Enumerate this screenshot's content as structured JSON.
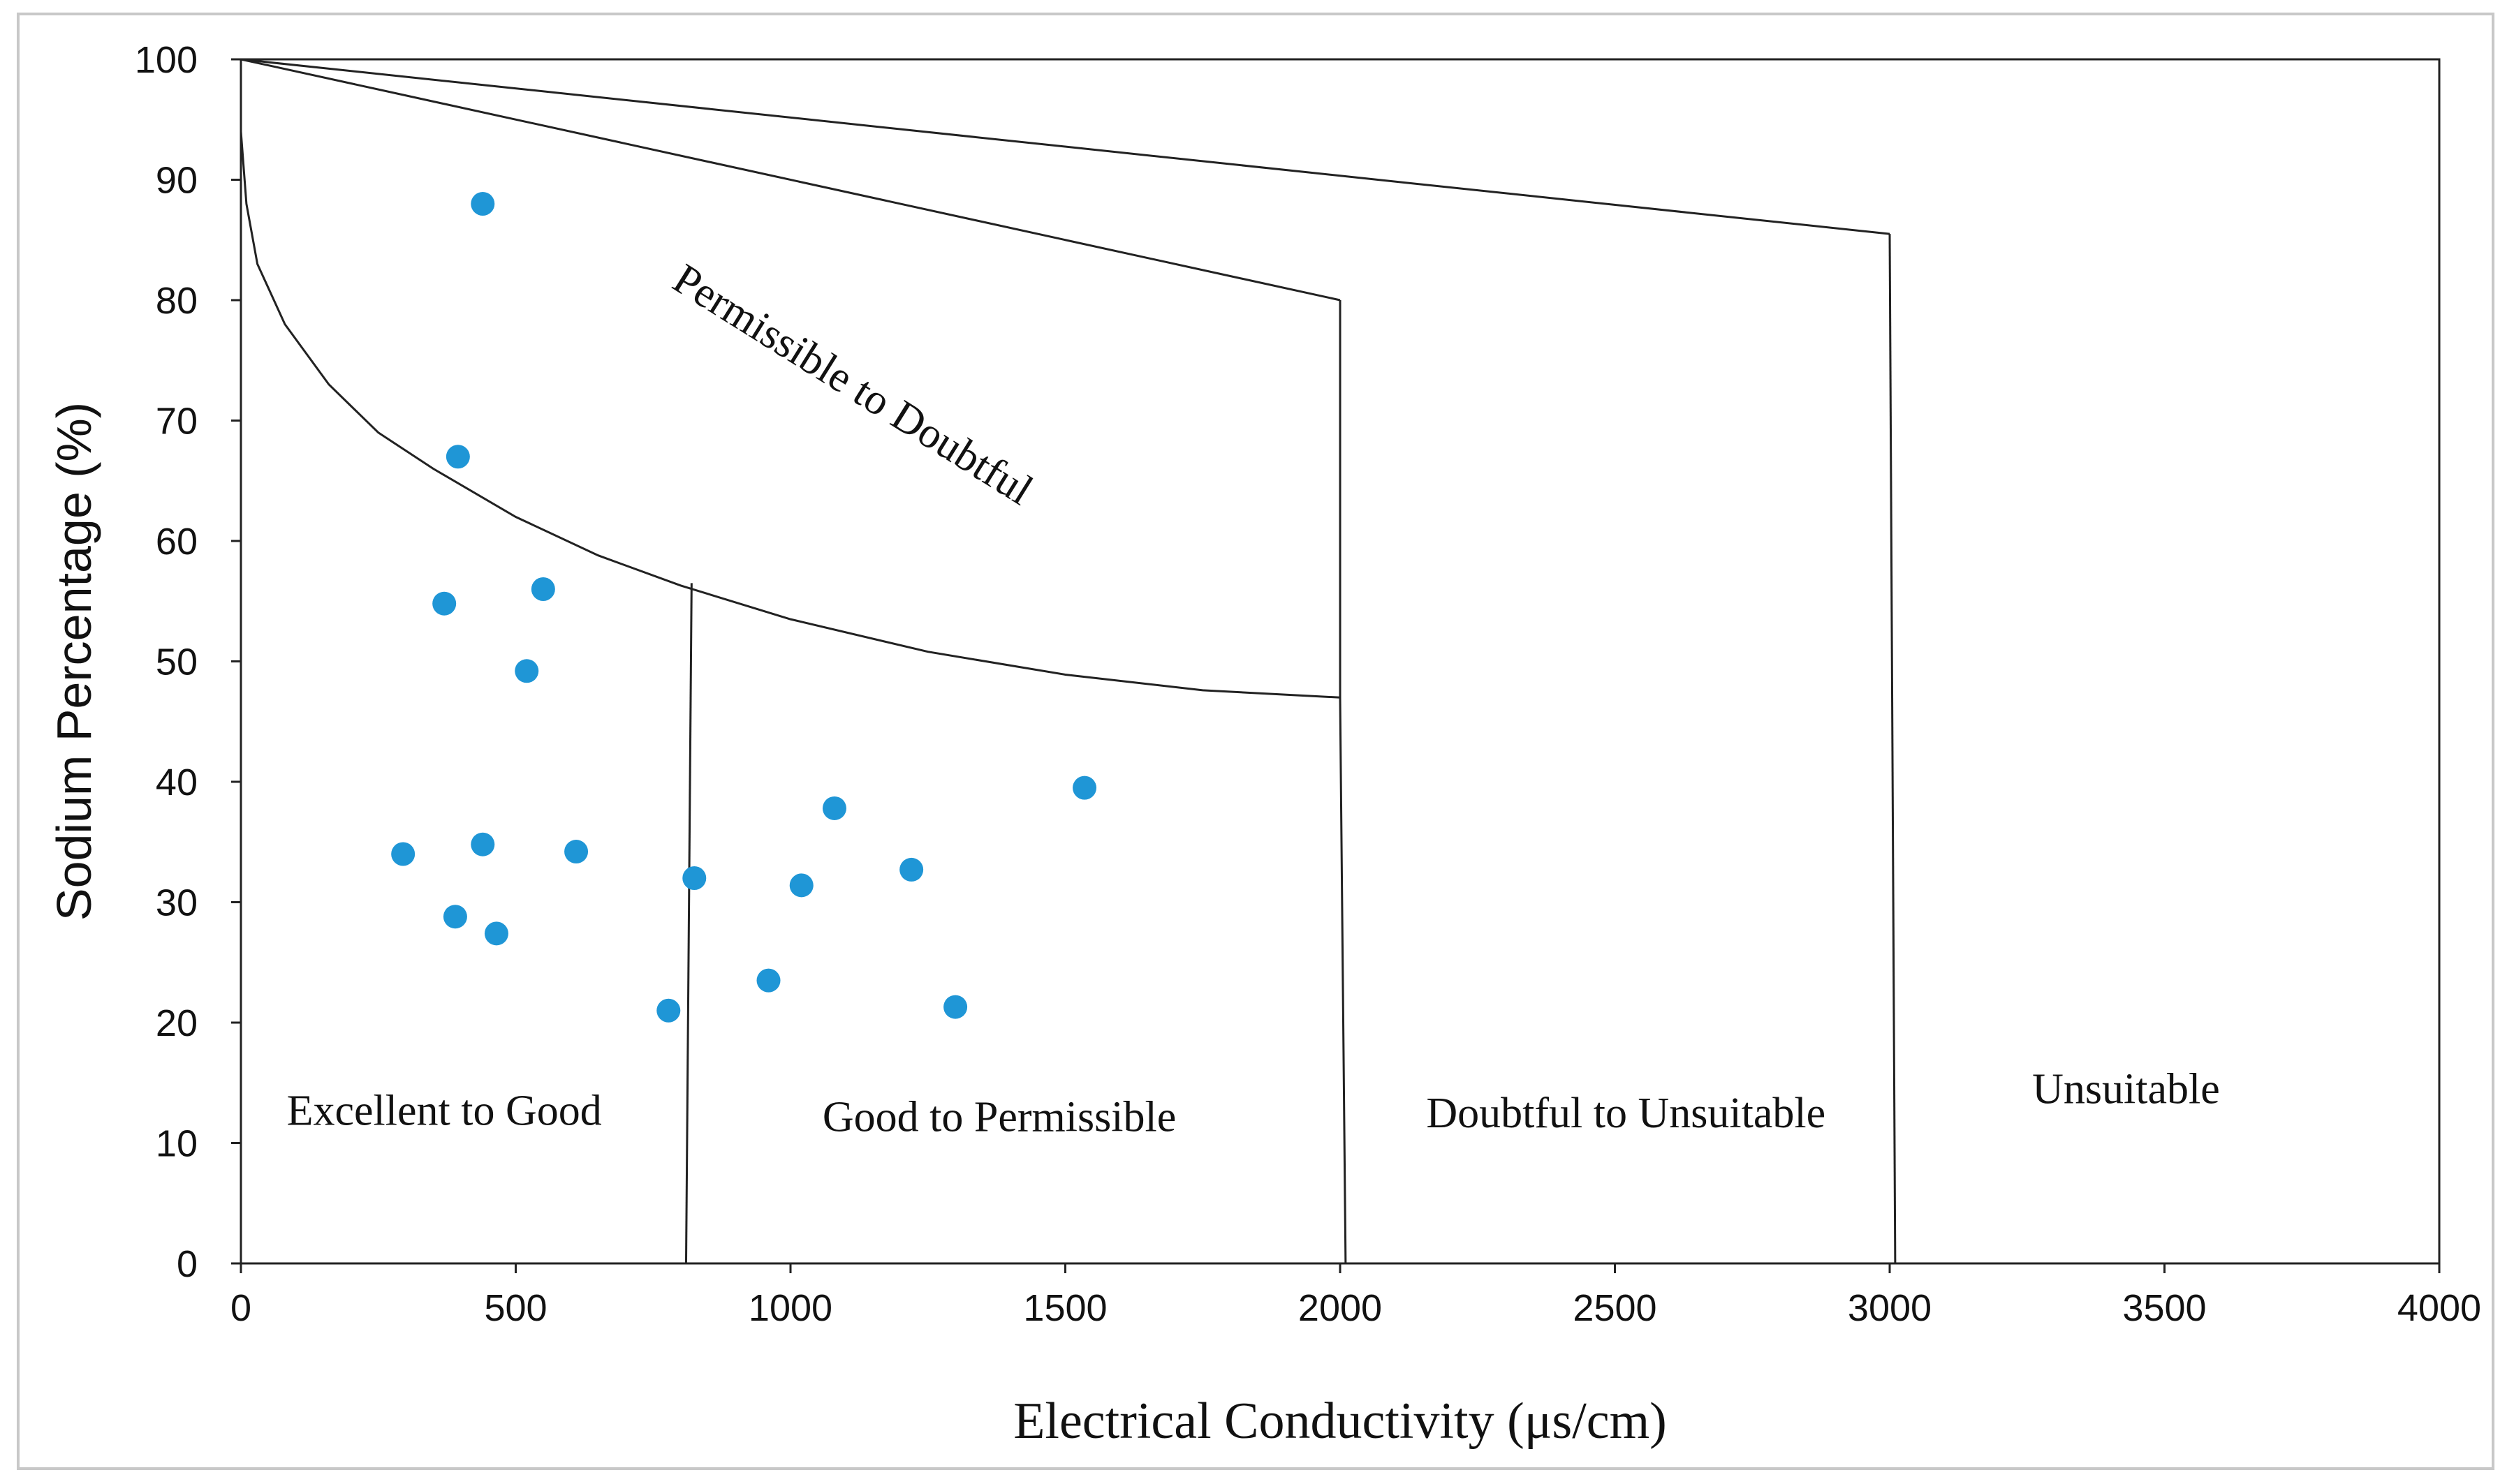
{
  "chart_data": {
    "type": "scatter",
    "title": "",
    "xlabel": "Electrical Conductivity (μs/cm)",
    "ylabel": "Sodium Percentage (%)",
    "xlim": [
      0,
      4000
    ],
    "ylim": [
      0,
      100
    ],
    "xticks": [
      0,
      500,
      1000,
      1500,
      2000,
      2500,
      3000,
      3500,
      4000
    ],
    "yticks": [
      0,
      10,
      20,
      30,
      40,
      50,
      60,
      70,
      80,
      90,
      100
    ],
    "grid": false,
    "legend": "none",
    "series": [
      {
        "name": "samples",
        "color": "#1f96d6",
        "points": [
          {
            "x": 440,
            "y": 88
          },
          {
            "x": 395,
            "y": 67
          },
          {
            "x": 370,
            "y": 54.8
          },
          {
            "x": 550,
            "y": 56
          },
          {
            "x": 520,
            "y": 49.2
          },
          {
            "x": 295,
            "y": 34
          },
          {
            "x": 440,
            "y": 34.8
          },
          {
            "x": 610,
            "y": 34.2
          },
          {
            "x": 390,
            "y": 28.8
          },
          {
            "x": 465,
            "y": 27.4
          },
          {
            "x": 825,
            "y": 32
          },
          {
            "x": 778,
            "y": 21
          },
          {
            "x": 960,
            "y": 23.5
          },
          {
            "x": 1020,
            "y": 31.4
          },
          {
            "x": 1080,
            "y": 37.8
          },
          {
            "x": 1220,
            "y": 32.7
          },
          {
            "x": 1300,
            "y": 21.3
          },
          {
            "x": 1535,
            "y": 39.5
          }
        ]
      }
    ],
    "boundaries": [
      {
        "name": "line-outer",
        "points": [
          [
            0,
            100
          ],
          [
            3000,
            85.5
          ]
        ]
      },
      {
        "name": "line-middle",
        "points": [
          [
            0,
            100
          ],
          [
            2000,
            80
          ]
        ]
      },
      {
        "name": "vertical-2000",
        "points": [
          [
            2000,
            80
          ],
          [
            2000,
            47
          ],
          [
            2010,
            0
          ]
        ]
      },
      {
        "name": "vertical-3000",
        "points": [
          [
            3000,
            85.5
          ],
          [
            3010,
            0
          ]
        ]
      },
      {
        "name": "vertical-800",
        "points": [
          [
            820,
            56.5
          ],
          [
            810,
            0
          ]
        ]
      },
      {
        "name": "curve-lower",
        "points": [
          [
            0,
            94
          ],
          [
            10,
            88
          ],
          [
            30,
            83
          ],
          [
            80,
            78
          ],
          [
            160,
            73
          ],
          [
            250,
            69
          ],
          [
            350,
            66
          ],
          [
            500,
            62
          ],
          [
            650,
            58.8
          ],
          [
            800,
            56.3
          ],
          [
            1000,
            53.5
          ],
          [
            1250,
            50.8
          ],
          [
            1500,
            48.9
          ],
          [
            1750,
            47.6
          ],
          [
            2000,
            47
          ]
        ]
      }
    ],
    "annotations": [
      {
        "text": "Permissible to Doubtful",
        "x": 1100,
        "y": 72,
        "angle": 32
      },
      {
        "text": "Excellent to Good",
        "x": 370,
        "y": 11.5,
        "angle": 0
      },
      {
        "text": "Good to Permissible",
        "x": 1380,
        "y": 11,
        "angle": 0
      },
      {
        "text": "Doubtful to Unsuitable",
        "x": 2520,
        "y": 11.3,
        "angle": 0
      },
      {
        "text": "Unsuitable",
        "x": 3430,
        "y": 13.3,
        "angle": 0
      }
    ]
  }
}
